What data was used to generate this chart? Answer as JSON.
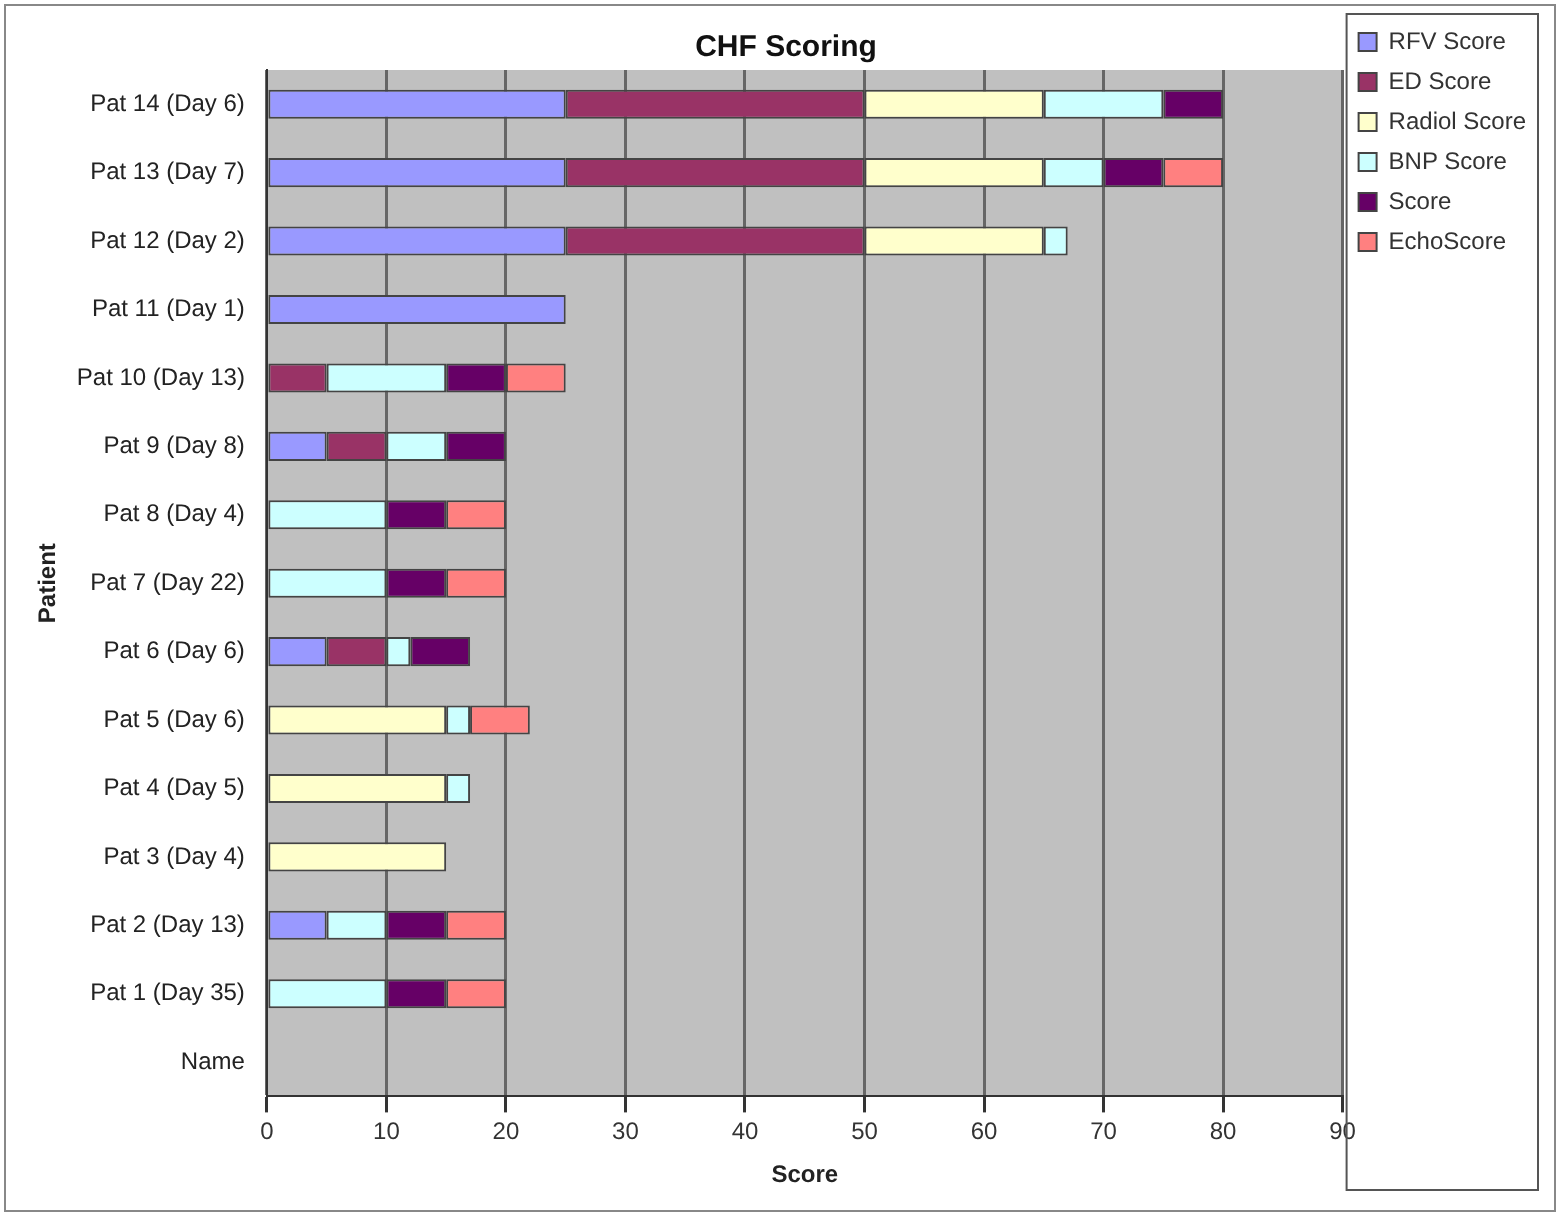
{
  "chart_data": {
    "type": "bar",
    "orientation": "horizontal",
    "stacked": true,
    "title": "CHF Scoring",
    "xlabel": "Score",
    "ylabel": "Patient",
    "categories": [
      "Pat 14 (Day 6)",
      "Pat 13 (Day 7)",
      "Pat 12 (Day 2)",
      "Pat 11 (Day 1)",
      "Pat 10 (Day 13)",
      "Pat 9 (Day 8)",
      "Pat 8 (Day 4)",
      "Pat 7 (Day 22)",
      "Pat 6 (Day 6)",
      "Pat 5 (Day 6)",
      "Pat 4 (Day 5)",
      "Pat 3 (Day 4)",
      "Pat 2 (Day 13)",
      "Pat 1 (Day 35)",
      "Name"
    ],
    "series": [
      {
        "name": "RFV Score",
        "color": "#9999ff",
        "values": [
          25,
          25,
          25,
          25,
          0,
          5,
          0,
          0,
          5,
          0,
          0,
          0,
          5,
          0,
          null
        ]
      },
      {
        "name": "ED Score",
        "color": "#993366",
        "values": [
          25,
          25,
          25,
          0,
          5,
          5,
          0,
          0,
          5,
          0,
          0,
          0,
          0,
          0,
          null
        ]
      },
      {
        "name": "Radiol Score",
        "color": "#ffffcc",
        "values": [
          15,
          15,
          15,
          0,
          0,
          0,
          0,
          0,
          0,
          15,
          15,
          15,
          0,
          0,
          null
        ]
      },
      {
        "name": "BNP Score",
        "color": "#ccffff",
        "values": [
          10,
          5,
          2,
          0,
          10,
          5,
          10,
          10,
          2,
          2,
          2,
          0,
          5,
          10,
          null
        ]
      },
      {
        "name": "Score",
        "color": "#660066",
        "values": [
          5,
          5,
          0,
          0,
          5,
          5,
          5,
          5,
          5,
          0,
          0,
          0,
          5,
          5,
          null
        ]
      },
      {
        "name": "EchoScore",
        "color": "#ff8080",
        "values": [
          0,
          5,
          0,
          0,
          5,
          0,
          5,
          5,
          0,
          5,
          0,
          0,
          5,
          5,
          null
        ]
      }
    ],
    "xlim": [
      0,
      90
    ],
    "xticks": [
      0,
      10,
      20,
      30,
      40,
      50,
      60,
      70,
      80,
      90
    ],
    "grid": "x",
    "legend": "top right"
  }
}
